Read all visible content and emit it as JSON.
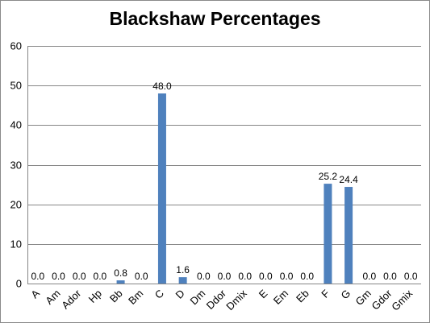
{
  "chart_data": {
    "type": "bar",
    "title": "Blackshaw Percentages",
    "xlabel": "",
    "ylabel": "",
    "ylim": [
      0,
      60
    ],
    "yticks": [
      0,
      10,
      20,
      30,
      40,
      50,
      60
    ],
    "grid": true,
    "legend": "none",
    "categories": [
      "A",
      "Am",
      "Ador",
      "Hp",
      "Bb",
      "Bm",
      "C",
      "D",
      "Dm",
      "Ddor",
      "Dmix",
      "E",
      "Em",
      "Eb",
      "F",
      "G",
      "Gm",
      "Gdor",
      "Gmix"
    ],
    "values": [
      0.0,
      0.0,
      0.0,
      0.0,
      0.8,
      0.0,
      48.0,
      1.6,
      0.0,
      0.0,
      0.0,
      0.0,
      0.0,
      0.0,
      25.2,
      24.4,
      0.0,
      0.0,
      0.0
    ],
    "data_labels": [
      "0.0",
      "0.0",
      "0.0",
      "0.0",
      "0.8",
      "0.0",
      "48.0",
      "1.6",
      "0.0",
      "0.0",
      "0.0",
      "0.0",
      "0.0",
      "0.0",
      "25.2",
      "24.4",
      "0.0",
      "0.0",
      "0.0"
    ],
    "bar_color": "#4f81bd",
    "grid_color": "#868686"
  }
}
